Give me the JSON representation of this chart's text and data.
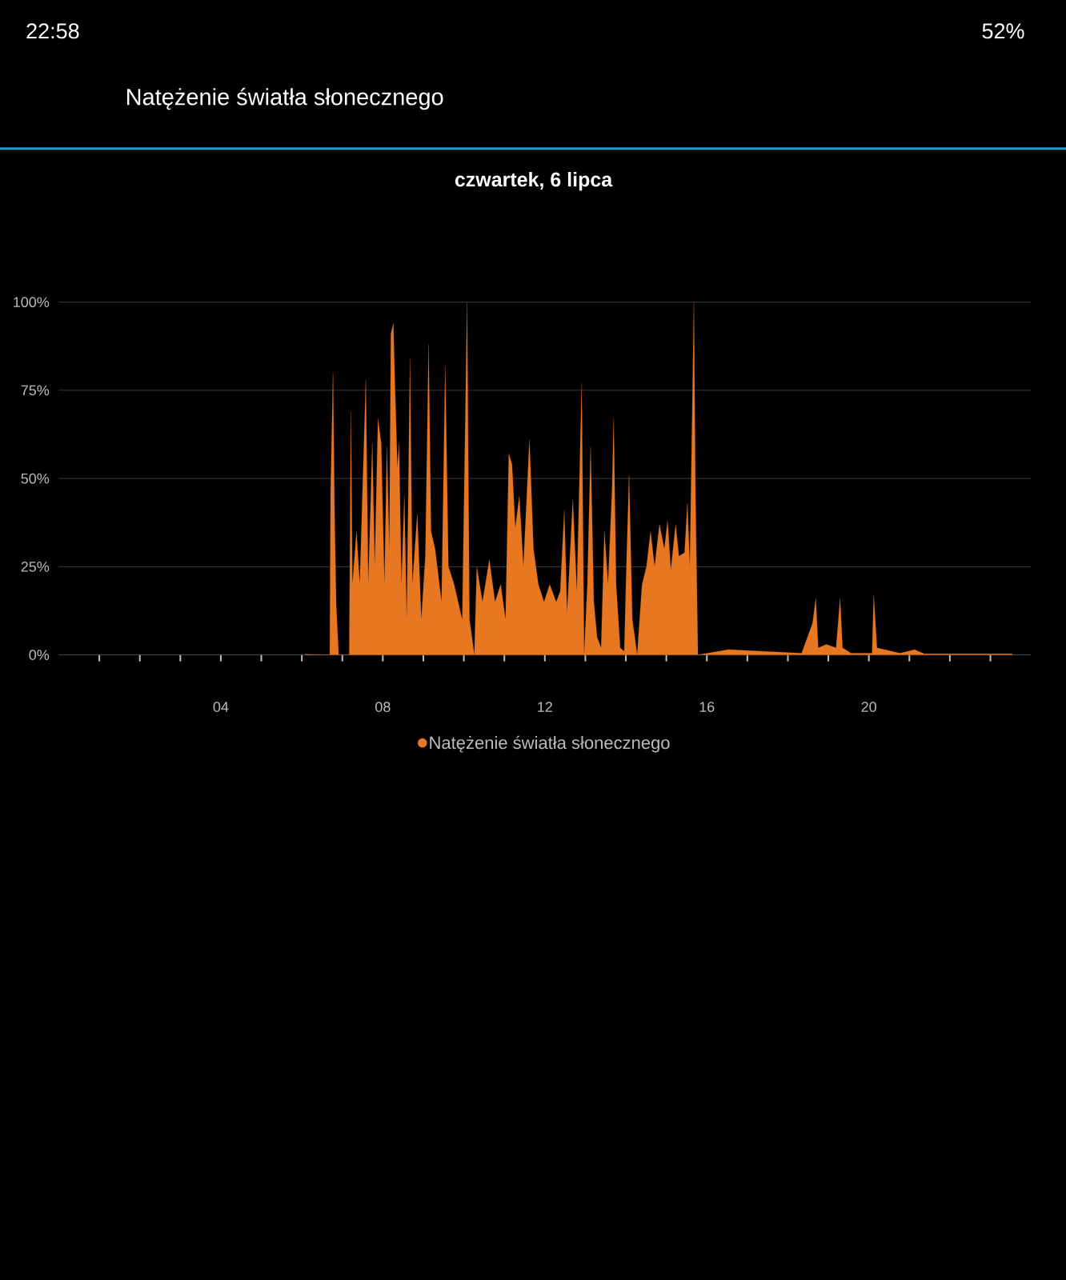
{
  "chart_data": {
    "type": "area",
    "title": "Natężenie światła słonecznego",
    "subtitle": "czwartek, 6 lipca",
    "annotations": [
      "22:58",
      "52%"
    ],
    "x": [
      6.08,
      6.69,
      6.71,
      6.77,
      6.81,
      6.85,
      6.91,
      7.17,
      7.21,
      7.25,
      7.35,
      7.43,
      7.58,
      7.64,
      7.74,
      7.8,
      7.88,
      7.96,
      8.04,
      8.1,
      8.16,
      8.2,
      8.26,
      8.3,
      8.36,
      8.4,
      8.46,
      8.53,
      8.59,
      8.67,
      8.73,
      8.85,
      8.95,
      9.05,
      9.13,
      9.19,
      9.29,
      9.45,
      9.54,
      9.62,
      9.76,
      9.96,
      10.08,
      10.14,
      10.26,
      10.32,
      10.46,
      10.63,
      10.77,
      10.91,
      11.03,
      11.11,
      11.19,
      11.27,
      11.37,
      11.47,
      11.62,
      11.72,
      11.84,
      11.98,
      12.12,
      12.28,
      12.38,
      12.48,
      12.55,
      12.69,
      12.79,
      12.91,
      12.97,
      13.05,
      13.13,
      13.21,
      13.29,
      13.39,
      13.47,
      13.56,
      13.66,
      13.7,
      13.76,
      13.86,
      13.96,
      14.02,
      14.08,
      14.16,
      14.28,
      14.4,
      14.51,
      14.61,
      14.71,
      14.83,
      14.95,
      15.03,
      15.11,
      15.23,
      15.31,
      15.45,
      15.52,
      15.58,
      15.68,
      15.72,
      15.78,
      16.53,
      18.34,
      18.61,
      18.69,
      18.75,
      18.95,
      19.19,
      19.29,
      19.35,
      19.56,
      20.08,
      20.12,
      20.2,
      20.77,
      21.13,
      21.37,
      23.54
    ],
    "series": [
      {
        "name": "Natężenie światła słonecznego",
        "color": "#e87722",
        "values": [
          0.2,
          0,
          46,
          80,
          39,
          14,
          0,
          0,
          69,
          20,
          35,
          20,
          78,
          20,
          60,
          25,
          67,
          60,
          20,
          59,
          30,
          91,
          94,
          76,
          53,
          60,
          20,
          45,
          10,
          84,
          20,
          40,
          10,
          28,
          88,
          35,
          30,
          15,
          82,
          25,
          20,
          10,
          100,
          10,
          0,
          25,
          15,
          27,
          15,
          20,
          10,
          57,
          54,
          36,
          45,
          25,
          61,
          30,
          20,
          15,
          20,
          15,
          18,
          41,
          12,
          44,
          18,
          77,
          0,
          20,
          59,
          15,
          5,
          2,
          35,
          20,
          47,
          67,
          20,
          2,
          1,
          28,
          51,
          10,
          0,
          20,
          25,
          35,
          25,
          37,
          30,
          38,
          24,
          37,
          28,
          29,
          43,
          25,
          100,
          45,
          0,
          1.5,
          0.5,
          9,
          16,
          2,
          3,
          2,
          16,
          2,
          0.5,
          0.5,
          17,
          2,
          0.5,
          1.5,
          0.3,
          0.3
        ]
      }
    ],
    "xlim": [
      0,
      24
    ],
    "ylim": [
      0,
      100
    ],
    "xticks": [
      {
        "value": 1,
        "label": null
      },
      {
        "value": 2,
        "label": null
      },
      {
        "value": 3,
        "label": null
      },
      {
        "value": 4,
        "label": "04"
      },
      {
        "value": 5,
        "label": null
      },
      {
        "value": 6,
        "label": null
      },
      {
        "value": 7,
        "label": null
      },
      {
        "value": 8,
        "label": "08"
      },
      {
        "value": 9,
        "label": null
      },
      {
        "value": 10,
        "label": null
      },
      {
        "value": 11,
        "label": null
      },
      {
        "value": 12,
        "label": "12"
      },
      {
        "value": 13,
        "label": null
      },
      {
        "value": 14,
        "label": null
      },
      {
        "value": 15,
        "label": null
      },
      {
        "value": 16,
        "label": "16"
      },
      {
        "value": 17,
        "label": null
      },
      {
        "value": 18,
        "label": null
      },
      {
        "value": 19,
        "label": null
      },
      {
        "value": 20,
        "label": "20"
      },
      {
        "value": 21,
        "label": null
      },
      {
        "value": 22,
        "label": null
      },
      {
        "value": 23,
        "label": null
      }
    ],
    "yticks": [
      {
        "value": 0,
        "label": "0%"
      },
      {
        "value": 25,
        "label": "25%"
      },
      {
        "value": 50,
        "label": "50%"
      },
      {
        "value": 75,
        "label": "75%"
      },
      {
        "value": 100,
        "label": "100%"
      }
    ],
    "grid": "y",
    "legend": "bottom"
  }
}
